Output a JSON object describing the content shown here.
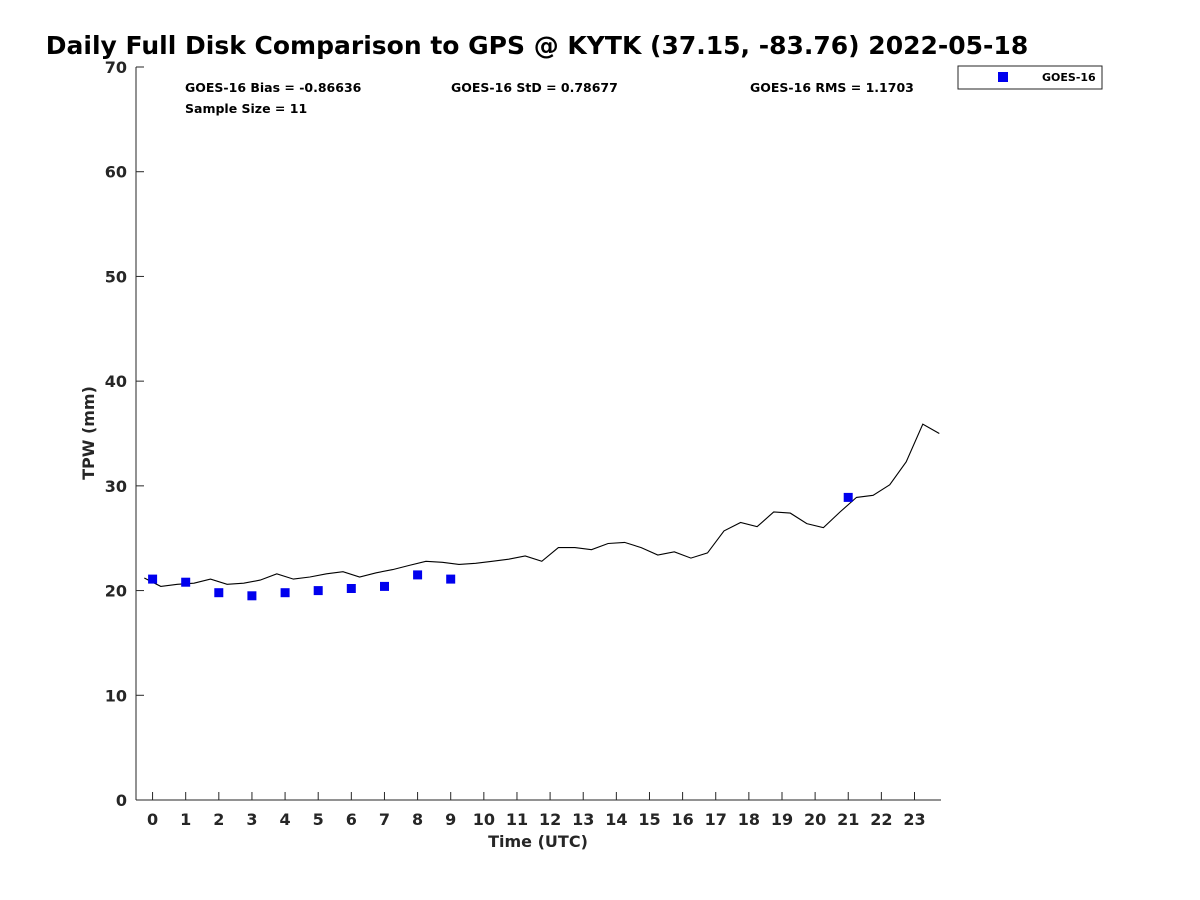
{
  "chart_data": {
    "type": "scatter",
    "title": "Daily Full Disk Comparison to GPS @ KYTK (37.15, -83.76) 2022-05-18",
    "xlabel": "Time (UTC)",
    "ylabel": "TPW (mm)",
    "xlim": [
      -0.5,
      23.8
    ],
    "ylim": [
      0,
      70
    ],
    "x_ticks": [
      0,
      1,
      2,
      3,
      4,
      5,
      6,
      7,
      8,
      9,
      10,
      11,
      12,
      13,
      14,
      15,
      16,
      17,
      18,
      19,
      20,
      21,
      22,
      23
    ],
    "y_ticks": [
      0,
      10,
      20,
      30,
      40,
      50,
      60,
      70
    ],
    "grid": false,
    "legend_position": "top-right",
    "stats": {
      "bias": "GOES-16 Bias = -0.86636",
      "std": "GOES-16 StD = 0.78677",
      "rms": "GOES-16 RMS = 1.1703",
      "sample_size": "Sample Size = 11"
    },
    "series": [
      {
        "name": "GOES-16",
        "type": "scatter",
        "color": "#0000ee",
        "marker": "square",
        "x": [
          0,
          1,
          2,
          3,
          4,
          5,
          6,
          7,
          8,
          9,
          21
        ],
        "y": [
          21.1,
          20.8,
          19.8,
          19.5,
          19.8,
          20.0,
          20.2,
          20.4,
          21.5,
          21.1,
          28.9
        ]
      },
      {
        "type": "line",
        "color": "#000000",
        "x": [
          -0.25,
          0.25,
          0.75,
          1.25,
          1.75,
          2.25,
          2.75,
          3.25,
          3.75,
          4.25,
          4.75,
          5.25,
          5.75,
          6.25,
          6.75,
          7.25,
          7.75,
          8.25,
          8.75,
          9.25,
          9.75,
          10.25,
          10.75,
          11.25,
          11.75,
          12.25,
          12.75,
          13.25,
          13.75,
          14.25,
          14.75,
          15.25,
          15.75,
          16.25,
          16.75,
          17.25,
          17.75,
          18.25,
          18.75,
          19.25,
          19.75,
          20.25,
          20.75,
          21.25,
          21.75,
          22.25,
          22.75,
          23.25,
          23.75
        ],
        "y": [
          21.2,
          20.4,
          20.6,
          20.7,
          21.1,
          20.6,
          20.7,
          21.0,
          21.6,
          21.1,
          21.3,
          21.6,
          21.8,
          21.3,
          21.7,
          22.0,
          22.4,
          22.8,
          22.7,
          22.5,
          22.6,
          22.8,
          23.0,
          23.3,
          22.8,
          24.1,
          24.1,
          23.9,
          24.5,
          24.6,
          24.1,
          23.4,
          23.7,
          23.1,
          23.6,
          25.7,
          26.5,
          26.1,
          27.5,
          27.4,
          26.4,
          26.0,
          27.5,
          28.9,
          29.1,
          30.1,
          32.3,
          35.9,
          35.0
        ]
      }
    ]
  }
}
